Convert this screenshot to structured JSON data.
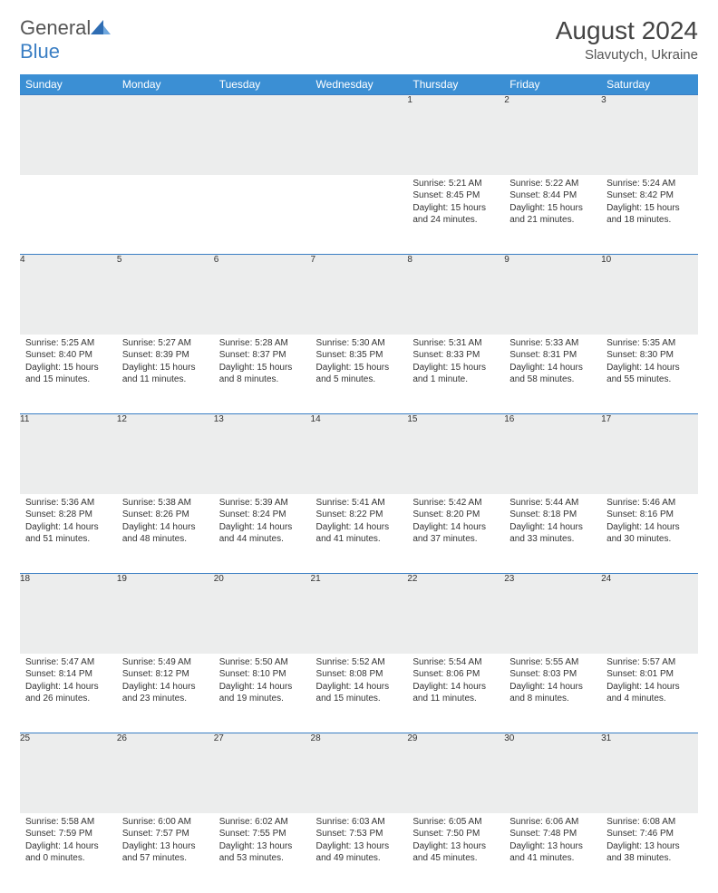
{
  "logo": {
    "text_general": "General",
    "text_blue": "Blue"
  },
  "title": "August 2024",
  "location": "Slavutych, Ukraine",
  "colors": {
    "header_bar": "#3b8fd4",
    "rule": "#3b7fc4",
    "daynum_bg": "#eceded",
    "background": "#ffffff",
    "text": "#333333"
  },
  "weekdays": [
    "Sunday",
    "Monday",
    "Tuesday",
    "Wednesday",
    "Thursday",
    "Friday",
    "Saturday"
  ],
  "weeks": [
    [
      null,
      null,
      null,
      null,
      {
        "day": "1",
        "sunrise": "Sunrise: 5:21 AM",
        "sunset": "Sunset: 8:45 PM",
        "daylight": "Daylight: 15 hours and 24 minutes."
      },
      {
        "day": "2",
        "sunrise": "Sunrise: 5:22 AM",
        "sunset": "Sunset: 8:44 PM",
        "daylight": "Daylight: 15 hours and 21 minutes."
      },
      {
        "day": "3",
        "sunrise": "Sunrise: 5:24 AM",
        "sunset": "Sunset: 8:42 PM",
        "daylight": "Daylight: 15 hours and 18 minutes."
      }
    ],
    [
      {
        "day": "4",
        "sunrise": "Sunrise: 5:25 AM",
        "sunset": "Sunset: 8:40 PM",
        "daylight": "Daylight: 15 hours and 15 minutes."
      },
      {
        "day": "5",
        "sunrise": "Sunrise: 5:27 AM",
        "sunset": "Sunset: 8:39 PM",
        "daylight": "Daylight: 15 hours and 11 minutes."
      },
      {
        "day": "6",
        "sunrise": "Sunrise: 5:28 AM",
        "sunset": "Sunset: 8:37 PM",
        "daylight": "Daylight: 15 hours and 8 minutes."
      },
      {
        "day": "7",
        "sunrise": "Sunrise: 5:30 AM",
        "sunset": "Sunset: 8:35 PM",
        "daylight": "Daylight: 15 hours and 5 minutes."
      },
      {
        "day": "8",
        "sunrise": "Sunrise: 5:31 AM",
        "sunset": "Sunset: 8:33 PM",
        "daylight": "Daylight: 15 hours and 1 minute."
      },
      {
        "day": "9",
        "sunrise": "Sunrise: 5:33 AM",
        "sunset": "Sunset: 8:31 PM",
        "daylight": "Daylight: 14 hours and 58 minutes."
      },
      {
        "day": "10",
        "sunrise": "Sunrise: 5:35 AM",
        "sunset": "Sunset: 8:30 PM",
        "daylight": "Daylight: 14 hours and 55 minutes."
      }
    ],
    [
      {
        "day": "11",
        "sunrise": "Sunrise: 5:36 AM",
        "sunset": "Sunset: 8:28 PM",
        "daylight": "Daylight: 14 hours and 51 minutes."
      },
      {
        "day": "12",
        "sunrise": "Sunrise: 5:38 AM",
        "sunset": "Sunset: 8:26 PM",
        "daylight": "Daylight: 14 hours and 48 minutes."
      },
      {
        "day": "13",
        "sunrise": "Sunrise: 5:39 AM",
        "sunset": "Sunset: 8:24 PM",
        "daylight": "Daylight: 14 hours and 44 minutes."
      },
      {
        "day": "14",
        "sunrise": "Sunrise: 5:41 AM",
        "sunset": "Sunset: 8:22 PM",
        "daylight": "Daylight: 14 hours and 41 minutes."
      },
      {
        "day": "15",
        "sunrise": "Sunrise: 5:42 AM",
        "sunset": "Sunset: 8:20 PM",
        "daylight": "Daylight: 14 hours and 37 minutes."
      },
      {
        "day": "16",
        "sunrise": "Sunrise: 5:44 AM",
        "sunset": "Sunset: 8:18 PM",
        "daylight": "Daylight: 14 hours and 33 minutes."
      },
      {
        "day": "17",
        "sunrise": "Sunrise: 5:46 AM",
        "sunset": "Sunset: 8:16 PM",
        "daylight": "Daylight: 14 hours and 30 minutes."
      }
    ],
    [
      {
        "day": "18",
        "sunrise": "Sunrise: 5:47 AM",
        "sunset": "Sunset: 8:14 PM",
        "daylight": "Daylight: 14 hours and 26 minutes."
      },
      {
        "day": "19",
        "sunrise": "Sunrise: 5:49 AM",
        "sunset": "Sunset: 8:12 PM",
        "daylight": "Daylight: 14 hours and 23 minutes."
      },
      {
        "day": "20",
        "sunrise": "Sunrise: 5:50 AM",
        "sunset": "Sunset: 8:10 PM",
        "daylight": "Daylight: 14 hours and 19 minutes."
      },
      {
        "day": "21",
        "sunrise": "Sunrise: 5:52 AM",
        "sunset": "Sunset: 8:08 PM",
        "daylight": "Daylight: 14 hours and 15 minutes."
      },
      {
        "day": "22",
        "sunrise": "Sunrise: 5:54 AM",
        "sunset": "Sunset: 8:06 PM",
        "daylight": "Daylight: 14 hours and 11 minutes."
      },
      {
        "day": "23",
        "sunrise": "Sunrise: 5:55 AM",
        "sunset": "Sunset: 8:03 PM",
        "daylight": "Daylight: 14 hours and 8 minutes."
      },
      {
        "day": "24",
        "sunrise": "Sunrise: 5:57 AM",
        "sunset": "Sunset: 8:01 PM",
        "daylight": "Daylight: 14 hours and 4 minutes."
      }
    ],
    [
      {
        "day": "25",
        "sunrise": "Sunrise: 5:58 AM",
        "sunset": "Sunset: 7:59 PM",
        "daylight": "Daylight: 14 hours and 0 minutes."
      },
      {
        "day": "26",
        "sunrise": "Sunrise: 6:00 AM",
        "sunset": "Sunset: 7:57 PM",
        "daylight": "Daylight: 13 hours and 57 minutes."
      },
      {
        "day": "27",
        "sunrise": "Sunrise: 6:02 AM",
        "sunset": "Sunset: 7:55 PM",
        "daylight": "Daylight: 13 hours and 53 minutes."
      },
      {
        "day": "28",
        "sunrise": "Sunrise: 6:03 AM",
        "sunset": "Sunset: 7:53 PM",
        "daylight": "Daylight: 13 hours and 49 minutes."
      },
      {
        "day": "29",
        "sunrise": "Sunrise: 6:05 AM",
        "sunset": "Sunset: 7:50 PM",
        "daylight": "Daylight: 13 hours and 45 minutes."
      },
      {
        "day": "30",
        "sunrise": "Sunrise: 6:06 AM",
        "sunset": "Sunset: 7:48 PM",
        "daylight": "Daylight: 13 hours and 41 minutes."
      },
      {
        "day": "31",
        "sunrise": "Sunrise: 6:08 AM",
        "sunset": "Sunset: 7:46 PM",
        "daylight": "Daylight: 13 hours and 38 minutes."
      }
    ]
  ]
}
